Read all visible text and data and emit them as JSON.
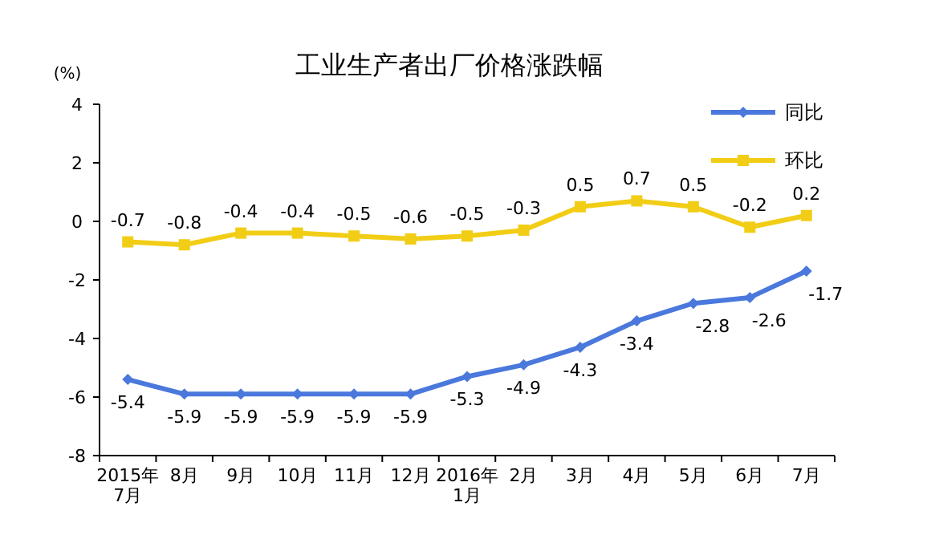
{
  "chart_data": {
    "type": "line",
    "title": "工业生产者出厂价格涨跌幅",
    "ylabel": "(%)",
    "categories": [
      "2015年\n7月",
      "8月",
      "9月",
      "10月",
      "11月",
      "12月",
      "2016年\n1月",
      "2月",
      "3月",
      "4月",
      "5月",
      "6月",
      "7月"
    ],
    "series": [
      {
        "name": "同比",
        "color": "#4a78dc",
        "marker": "diamond",
        "values": [
          -5.4,
          -5.9,
          -5.9,
          -5.9,
          -5.9,
          -5.9,
          -5.3,
          -4.9,
          -4.3,
          -3.4,
          -2.8,
          -2.6,
          -1.7
        ]
      },
      {
        "name": "环比",
        "color": "#f2cd16",
        "marker": "square",
        "values": [
          -0.7,
          -0.8,
          -0.4,
          -0.4,
          -0.5,
          -0.6,
          -0.5,
          -0.3,
          0.5,
          0.7,
          0.5,
          -0.2,
          0.2
        ]
      }
    ],
    "ylim": [
      -8,
      4
    ],
    "yticks": [
      -8,
      -6,
      -4,
      -2,
      0,
      2,
      4
    ],
    "data_labels": true,
    "legend": "top right",
    "grid": false
  }
}
